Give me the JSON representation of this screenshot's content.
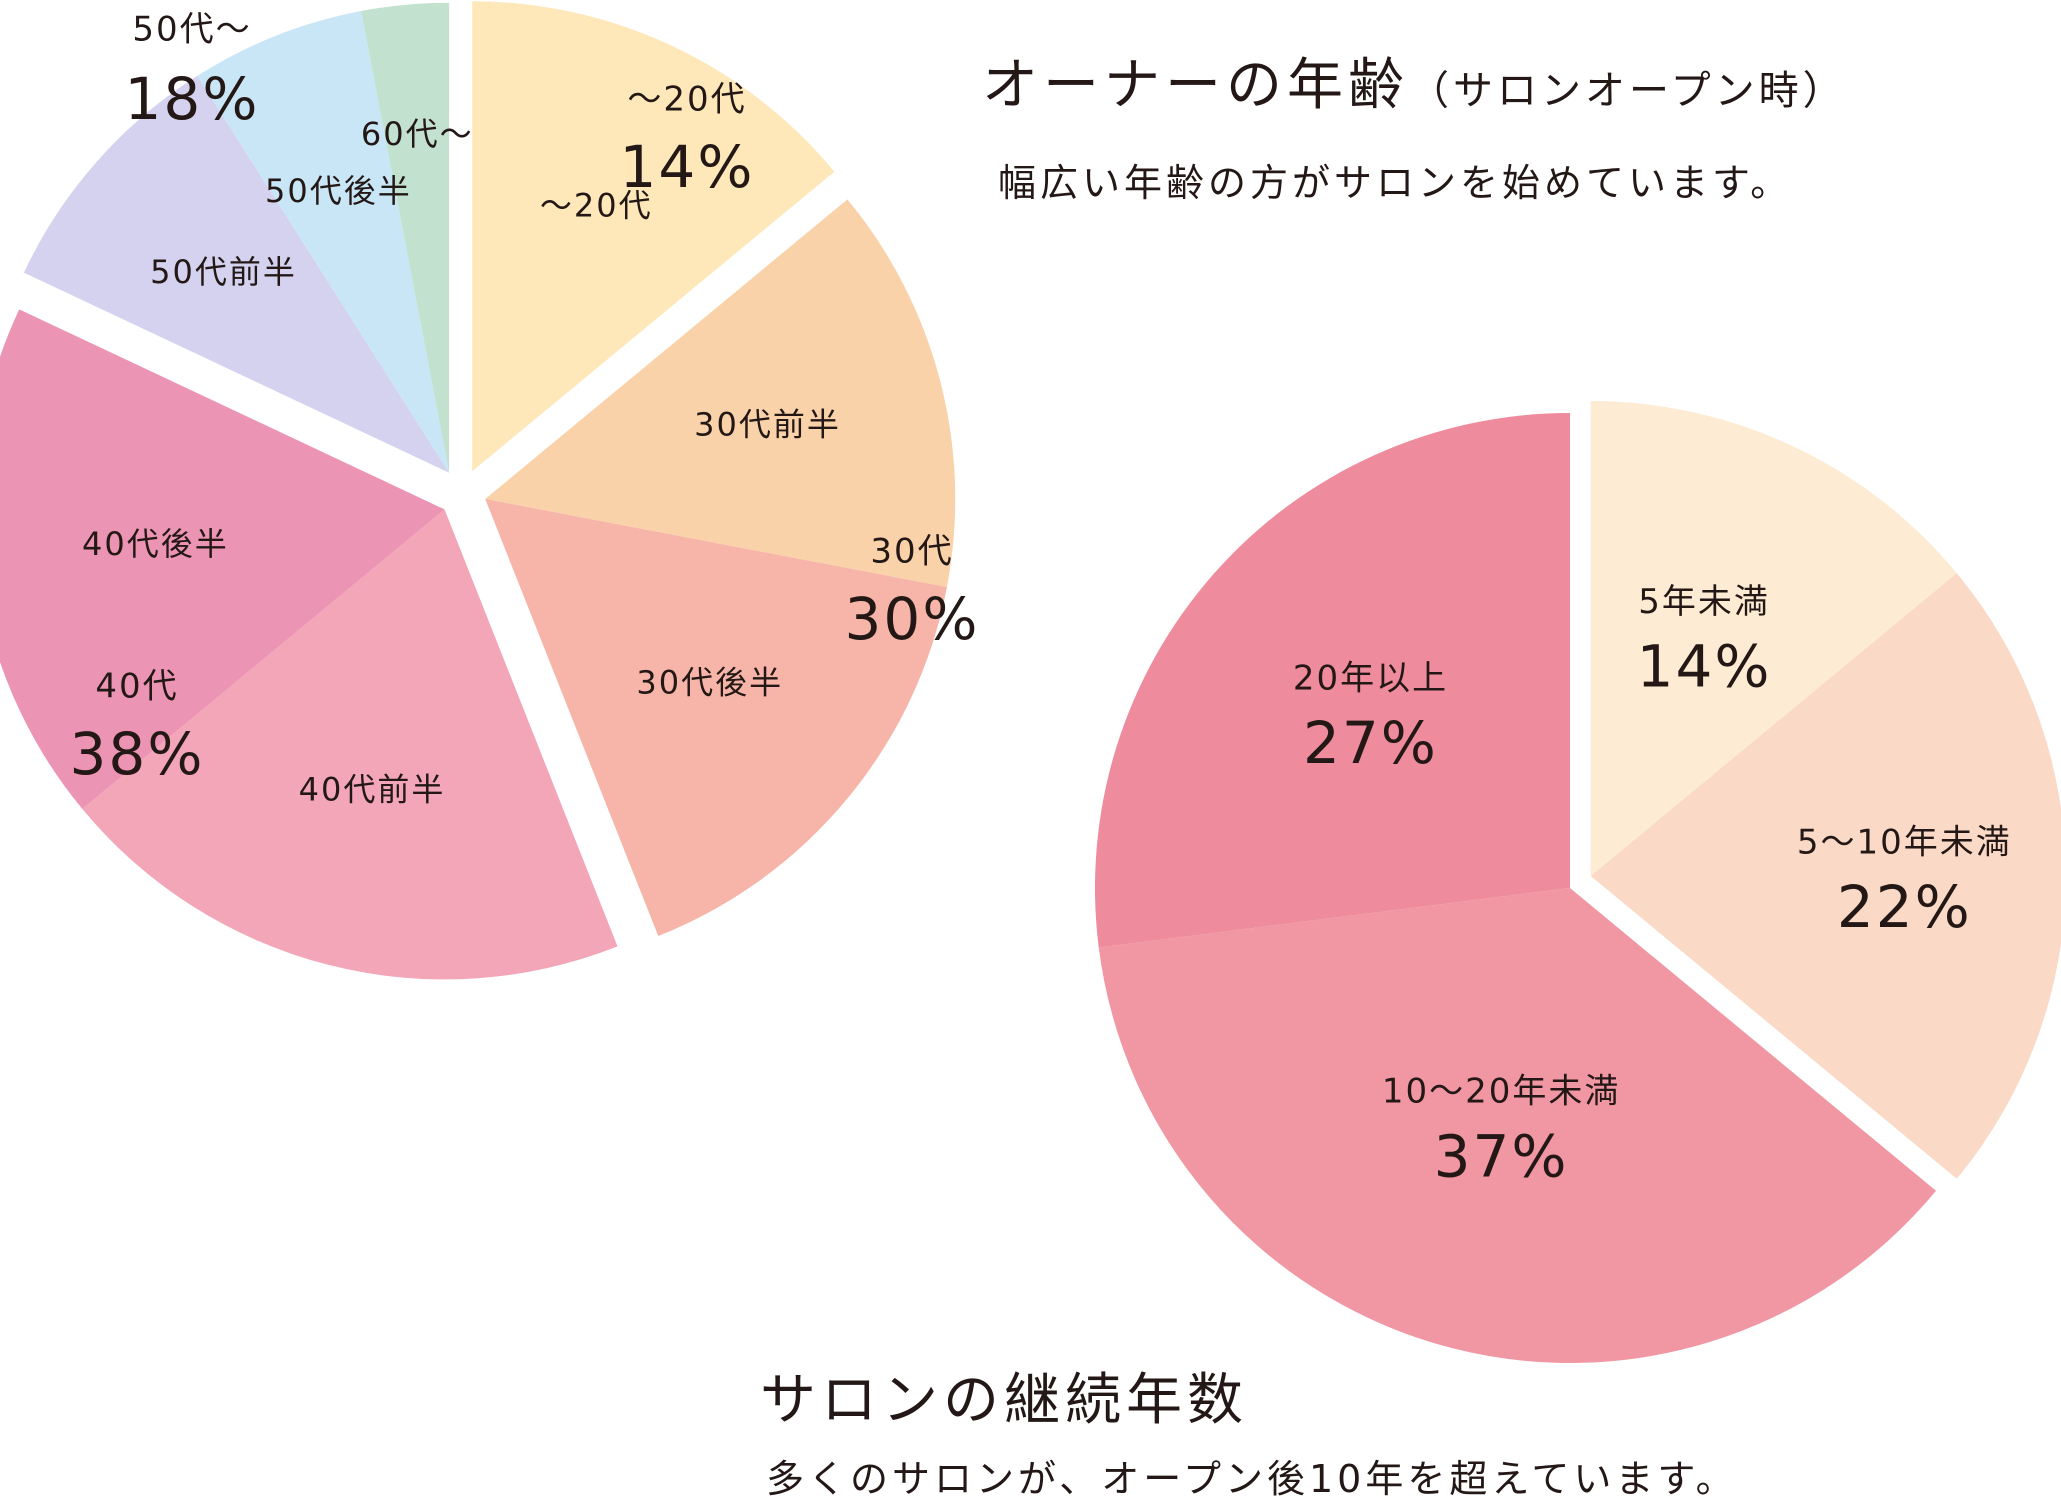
{
  "charts": {
    "age": {
      "title": "オーナーの年齢",
      "title_note": "（サロンオープン時）",
      "subtitle": "幅広い年齢の方がサロンを始めています。"
    },
    "years": {
      "title": "サロンの継続年数",
      "subtitle": "多くのサロンが、オープン後10年を超えています。"
    }
  },
  "chart_data": [
    {
      "type": "pie",
      "title": "オーナーの年齢（サロンオープン時）",
      "groups": [
        {
          "name": "～20代",
          "percent": "14%",
          "color": "#FEE8BA",
          "slices": [
            {
              "label": "～20代",
              "value": 14,
              "color": "#FEE8BA"
            }
          ]
        },
        {
          "name": "30代",
          "percent": "30%",
          "color": "#FAD2AA",
          "slices": [
            {
              "label": "30代前半",
              "value": 14,
              "color": "#FAD2AA"
            },
            {
              "label": "30代後半",
              "value": 16,
              "color": "#F6B5A8"
            }
          ]
        },
        {
          "name": "40代",
          "percent": "38%",
          "color": "#F2A6B8",
          "slices": [
            {
              "label": "40代前半",
              "value": 20,
              "color": "#F2A6B8"
            },
            {
              "label": "40代後半",
              "value": 18,
              "color": "#EC94B3"
            }
          ]
        },
        {
          "name": "50代～",
          "percent": "18%",
          "color": "#D4D2EE",
          "slices": [
            {
              "label": "50代前半",
              "value": 9,
              "color": "#D4D2EE"
            },
            {
              "label": "50代後半",
              "value": 6,
              "color": "#C9E6F7"
            },
            {
              "label": "60代～",
              "value": 3,
              "color": "#C3E1CF"
            }
          ]
        }
      ]
    },
    {
      "type": "pie",
      "title": "サロンの継続年数",
      "slices": [
        {
          "label": "5年未満",
          "value": 14,
          "percent": "14%",
          "color": "#FDEBD3"
        },
        {
          "label": "5～10年未満",
          "value": 22,
          "percent": "22%",
          "color": "#FAD9C6"
        },
        {
          "label": "10～20年未満",
          "value": 37,
          "percent": "37%",
          "color": "#F097A3"
        },
        {
          "label": "20年以上",
          "value": 27,
          "percent": "27%",
          "color": "#EE8B9C"
        }
      ]
    }
  ]
}
